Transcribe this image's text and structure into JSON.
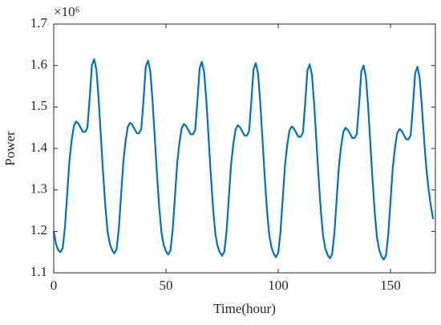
{
  "chart_data": {
    "type": "line",
    "xlabel": "Time(hour)",
    "ylabel": "Power",
    "y_exponent": "×10⁶",
    "xlim": [
      0,
      170
    ],
    "xticks": [
      0,
      50,
      100,
      150
    ],
    "ylim": [
      1.1,
      1.7
    ],
    "yticks": [
      1.1,
      1.2,
      1.3,
      1.4,
      1.5,
      1.6,
      1.7
    ],
    "x": [
      0,
      1,
      2,
      3,
      4,
      5,
      6,
      7,
      8,
      9,
      10,
      11,
      12,
      13,
      14,
      15,
      16,
      17,
      18,
      19,
      20,
      21,
      22,
      23,
      24,
      25,
      26,
      27,
      28,
      29,
      30,
      31,
      32,
      33,
      34,
      35,
      36,
      37,
      38,
      39,
      40,
      41,
      42,
      43,
      44,
      45,
      46,
      47,
      48,
      49,
      50,
      51,
      52,
      53,
      54,
      55,
      56,
      57,
      58,
      59,
      60,
      61,
      62,
      63,
      64,
      65,
      66,
      67,
      68,
      69,
      70,
      71,
      72,
      73,
      74,
      75,
      76,
      77,
      78,
      79,
      80,
      81,
      82,
      83,
      84,
      85,
      86,
      87,
      88,
      89,
      90,
      91,
      92,
      93,
      94,
      95,
      96,
      97,
      98,
      99,
      100,
      101,
      102,
      103,
      104,
      105,
      106,
      107,
      108,
      109,
      110,
      111,
      112,
      113,
      114,
      115,
      116,
      117,
      118,
      119,
      120,
      121,
      122,
      123,
      124,
      125,
      126,
      127,
      128,
      129,
      130,
      131,
      132,
      133,
      134,
      135,
      136,
      137,
      138,
      139,
      140,
      141,
      142,
      143,
      144,
      145,
      146,
      147,
      148,
      149,
      150,
      151,
      152,
      153,
      154,
      155,
      156,
      157,
      158,
      159,
      160,
      161,
      162,
      163,
      164,
      165,
      166,
      167,
      168,
      169
    ],
    "series": [
      {
        "name": "Power",
        "color": "#0072bd",
        "values": [
          1.2,
          1.17,
          1.155,
          1.15,
          1.16,
          1.21,
          1.29,
          1.37,
          1.42,
          1.455,
          1.465,
          1.46,
          1.45,
          1.44,
          1.44,
          1.45,
          1.52,
          1.6,
          1.615,
          1.59,
          1.52,
          1.43,
          1.34,
          1.26,
          1.2,
          1.17,
          1.155,
          1.147,
          1.157,
          1.207,
          1.287,
          1.367,
          1.417,
          1.452,
          1.462,
          1.457,
          1.447,
          1.437,
          1.437,
          1.447,
          1.517,
          1.597,
          1.612,
          1.587,
          1.517,
          1.427,
          1.337,
          1.257,
          1.197,
          1.167,
          1.152,
          1.144,
          1.154,
          1.204,
          1.284,
          1.364,
          1.414,
          1.449,
          1.459,
          1.454,
          1.444,
          1.434,
          1.434,
          1.444,
          1.514,
          1.594,
          1.609,
          1.584,
          1.514,
          1.424,
          1.334,
          1.254,
          1.194,
          1.164,
          1.149,
          1.141,
          1.151,
          1.201,
          1.281,
          1.361,
          1.411,
          1.446,
          1.456,
          1.451,
          1.441,
          1.431,
          1.431,
          1.441,
          1.511,
          1.591,
          1.606,
          1.581,
          1.511,
          1.421,
          1.331,
          1.251,
          1.191,
          1.161,
          1.146,
          1.138,
          1.148,
          1.198,
          1.278,
          1.358,
          1.408,
          1.443,
          1.453,
          1.448,
          1.438,
          1.428,
          1.428,
          1.438,
          1.508,
          1.588,
          1.603,
          1.578,
          1.508,
          1.418,
          1.328,
          1.248,
          1.188,
          1.158,
          1.143,
          1.135,
          1.145,
          1.195,
          1.275,
          1.355,
          1.405,
          1.44,
          1.45,
          1.445,
          1.435,
          1.425,
          1.425,
          1.435,
          1.505,
          1.585,
          1.6,
          1.575,
          1.505,
          1.415,
          1.325,
          1.245,
          1.185,
          1.155,
          1.14,
          1.132,
          1.142,
          1.192,
          1.272,
          1.352,
          1.402,
          1.437,
          1.447,
          1.442,
          1.432,
          1.422,
          1.422,
          1.432,
          1.502,
          1.582,
          1.597,
          1.57,
          1.5,
          1.42,
          1.35,
          1.3,
          1.26,
          1.23
        ]
      }
    ]
  }
}
